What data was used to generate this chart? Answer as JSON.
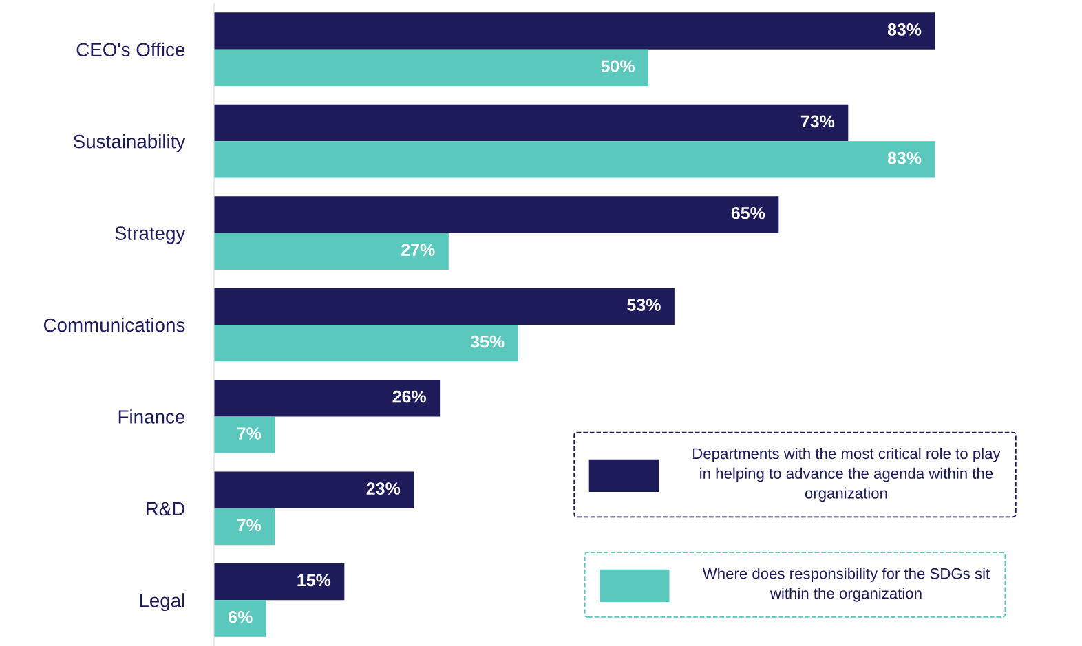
{
  "chart_data": {
    "type": "bar",
    "orientation": "horizontal",
    "categories": [
      "CEO's Office",
      "Sustainability",
      "Strategy",
      "Communications",
      "Finance",
      "R&D",
      "Legal"
    ],
    "series": [
      {
        "name": "Departments with the most critical role to play in helping to advance the agenda within the organization",
        "color": "#1e1b5a",
        "values": [
          83,
          73,
          65,
          53,
          26,
          23,
          15
        ],
        "value_labels": [
          "83%",
          "73%",
          "65%",
          "53%",
          "26%",
          "23%",
          "15%"
        ]
      },
      {
        "name": "Where does responsibility for the SDGs sit within the organization",
        "color": "#5bc8bd",
        "values": [
          50,
          83,
          27,
          35,
          7,
          7,
          6
        ],
        "value_labels": [
          "50%",
          "83%",
          "27%",
          "35%",
          "7%",
          "7%",
          "6%"
        ]
      }
    ],
    "tick_labels": "y",
    "legend": "bottom right",
    "grid": false
  }
}
